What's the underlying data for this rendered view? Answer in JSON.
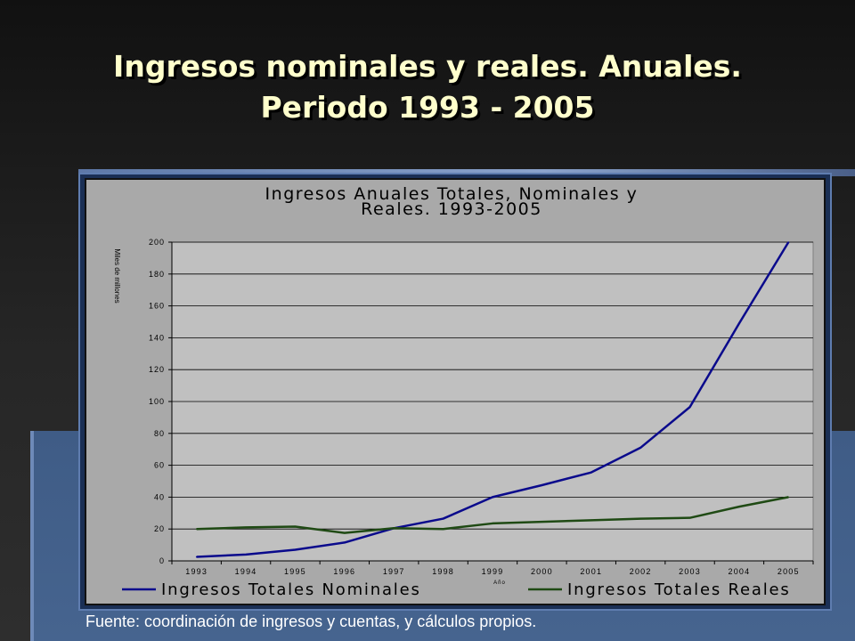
{
  "slide": {
    "title_line1": "Ingresos nominales y reales. Anuales.",
    "title_line2": "Periodo 1993 - 2005",
    "source": "Fuente: coordinación de ingresos y cuentas, y cálculos propios."
  },
  "colors": {
    "nominal": "#0a0a8c",
    "real": "#1f4a14",
    "plot_bg": "#c0c0c0",
    "chart_bg": "#a9a9a9"
  },
  "chart_data": {
    "type": "line",
    "title_line1": "Ingresos Anuales Totales, Nominales y",
    "title_line2": "Reales. 1993-2005",
    "xlabel": "Año",
    "ylabel": "Miles de millones",
    "ylim": [
      0,
      200
    ],
    "yticks": [
      0,
      20,
      40,
      60,
      80,
      100,
      120,
      140,
      160,
      180,
      200
    ],
    "x": [
      "1993",
      "1994",
      "1995",
      "1996",
      "1997",
      "1998",
      "1999",
      "2000",
      "2001",
      "2002",
      "2003",
      "2004",
      "2005"
    ],
    "grid": true,
    "legend_position": "bottom",
    "series": [
      {
        "name": "Ingresos Totales Nominales",
        "values": [
          2.5,
          4,
          7,
          11.5,
          20.5,
          26.5,
          40,
          47.5,
          55.5,
          71,
          96.5,
          149,
          200
        ]
      },
      {
        "name": "Ingresos Totales Reales",
        "values": [
          20,
          21,
          21.5,
          17.5,
          20.5,
          20,
          23.5,
          24.5,
          25.5,
          26.5,
          27,
          34,
          40
        ]
      }
    ]
  }
}
